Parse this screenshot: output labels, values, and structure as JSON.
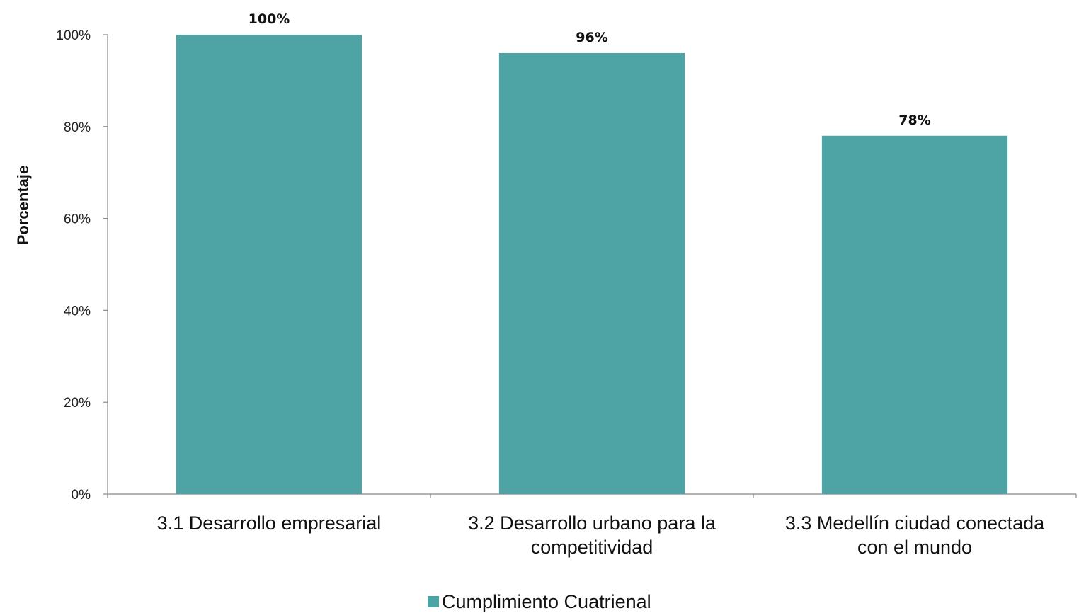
{
  "chart_data": {
    "type": "bar",
    "categories": [
      [
        "3.1 Desarrollo empresarial"
      ],
      [
        "3.2 Desarrollo urbano para la",
        "competitividad"
      ],
      [
        "3.3 Medellín ciudad conectada",
        "con el mundo"
      ]
    ],
    "series": [
      {
        "name": "Cumplimiento Cuatrienal",
        "values": [
          100,
          96,
          78
        ],
        "color": "#4EA3A4"
      }
    ],
    "data_labels": [
      "100%",
      "96%",
      "78%"
    ],
    "ylabel": "Porcentaje",
    "ylim": [
      0,
      100
    ],
    "yticks": [
      0,
      20,
      40,
      60,
      80,
      100
    ],
    "ytick_labels": [
      "0%",
      "20%",
      "40%",
      "60%",
      "80%",
      "100%"
    ],
    "grid": false,
    "legend_position": "bottom"
  }
}
